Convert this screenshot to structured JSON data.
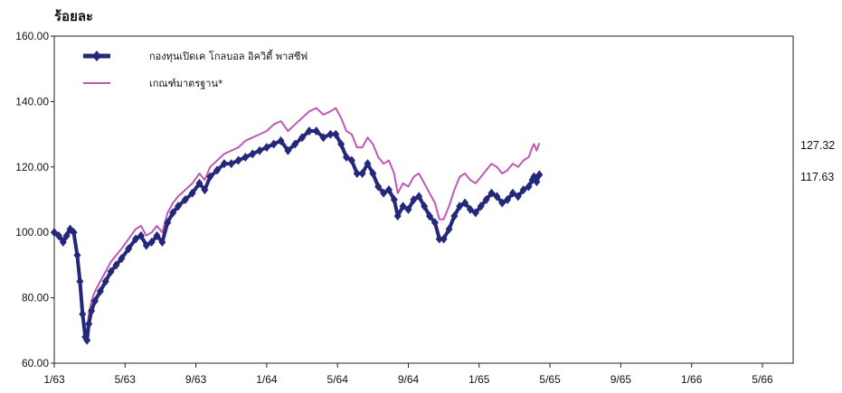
{
  "chart_data": {
    "type": "line",
    "ylabel": "ร้อยละ",
    "ylim": [
      60,
      160
    ],
    "yticks": [
      "160.00",
      "140.00",
      "120.00",
      "100.00",
      "80.00",
      "60.00"
    ],
    "xticks": [
      "1/63",
      "5/63",
      "9/63",
      "1/64",
      "5/64",
      "9/64",
      "1/65",
      "5/65",
      "9/65",
      "1/66",
      "5/66"
    ],
    "grid": false,
    "legend": "top-left",
    "series": [
      {
        "name": "กองทุนเปิดเค โกลบอล อิควิตี้ พาสซีฟ",
        "color": "#24287a",
        "marker": "diamond",
        "end_label": "117.63",
        "points": [
          [
            0,
            100
          ],
          [
            0.25,
            99
          ],
          [
            0.5,
            97
          ],
          [
            0.7,
            99
          ],
          [
            0.9,
            101
          ],
          [
            1.1,
            100
          ],
          [
            1.3,
            93
          ],
          [
            1.45,
            85
          ],
          [
            1.6,
            75
          ],
          [
            1.75,
            68
          ],
          [
            1.85,
            67
          ],
          [
            1.95,
            72
          ],
          [
            2.1,
            76
          ],
          [
            2.3,
            79
          ],
          [
            2.6,
            82
          ],
          [
            2.9,
            85
          ],
          [
            3.2,
            88
          ],
          [
            3.5,
            90
          ],
          [
            3.8,
            92
          ],
          [
            4.2,
            95
          ],
          [
            4.6,
            98
          ],
          [
            4.9,
            99
          ],
          [
            5.2,
            96
          ],
          [
            5.5,
            97
          ],
          [
            5.8,
            99
          ],
          [
            6.1,
            97
          ],
          [
            6.4,
            103
          ],
          [
            6.7,
            106
          ],
          [
            7.0,
            108
          ],
          [
            7.4,
            110
          ],
          [
            7.8,
            112
          ],
          [
            8.2,
            115
          ],
          [
            8.5,
            113
          ],
          [
            8.8,
            117
          ],
          [
            9.2,
            119
          ],
          [
            9.6,
            121
          ],
          [
            10.0,
            121
          ],
          [
            10.4,
            122
          ],
          [
            10.8,
            123
          ],
          [
            11.2,
            124
          ],
          [
            11.6,
            125
          ],
          [
            12.0,
            126
          ],
          [
            12.4,
            127
          ],
          [
            12.8,
            128
          ],
          [
            13.2,
            125
          ],
          [
            13.6,
            127
          ],
          [
            14.0,
            129
          ],
          [
            14.4,
            131
          ],
          [
            14.8,
            131
          ],
          [
            15.2,
            129
          ],
          [
            15.6,
            130
          ],
          [
            15.9,
            130
          ],
          [
            16.2,
            127
          ],
          [
            16.5,
            123
          ],
          [
            16.8,
            122
          ],
          [
            17.1,
            118
          ],
          [
            17.4,
            118
          ],
          [
            17.7,
            121
          ],
          [
            18.0,
            118
          ],
          [
            18.3,
            114
          ],
          [
            18.6,
            112
          ],
          [
            18.9,
            113
          ],
          [
            19.2,
            110
          ],
          [
            19.4,
            105
          ],
          [
            19.7,
            108
          ],
          [
            20.0,
            107
          ],
          [
            20.3,
            110
          ],
          [
            20.6,
            111
          ],
          [
            20.9,
            108
          ],
          [
            21.2,
            105
          ],
          [
            21.5,
            103
          ],
          [
            21.75,
            98
          ],
          [
            22.0,
            98
          ],
          [
            22.3,
            101
          ],
          [
            22.6,
            105
          ],
          [
            22.9,
            108
          ],
          [
            23.2,
            109
          ],
          [
            23.5,
            107
          ],
          [
            23.8,
            106
          ],
          [
            24.1,
            108
          ],
          [
            24.4,
            110
          ],
          [
            24.7,
            112
          ],
          [
            25.0,
            111
          ],
          [
            25.3,
            109
          ],
          [
            25.6,
            110
          ],
          [
            25.9,
            112
          ],
          [
            26.2,
            111
          ],
          [
            26.5,
            113
          ],
          [
            26.8,
            114
          ],
          [
            27.0,
            116
          ],
          [
            27.1,
            117
          ],
          [
            27.25,
            115.5
          ],
          [
            27.4,
            117.63
          ]
        ]
      },
      {
        "name": "เกณฑ์มาตรฐาน*",
        "color": "#c058b4",
        "marker": "none",
        "end_label": "127.32",
        "points": [
          [
            0,
            100
          ],
          [
            0.25,
            99.5
          ],
          [
            0.5,
            98
          ],
          [
            0.7,
            100
          ],
          [
            0.9,
            101.5
          ],
          [
            1.1,
            100.5
          ],
          [
            1.3,
            94
          ],
          [
            1.45,
            86
          ],
          [
            1.6,
            77
          ],
          [
            1.75,
            70
          ],
          [
            1.85,
            70
          ],
          [
            1.95,
            75
          ],
          [
            2.1,
            79
          ],
          [
            2.3,
            82
          ],
          [
            2.6,
            85
          ],
          [
            2.9,
            88
          ],
          [
            3.2,
            91
          ],
          [
            3.5,
            93
          ],
          [
            3.8,
            95
          ],
          [
            4.2,
            98
          ],
          [
            4.6,
            101
          ],
          [
            4.9,
            102
          ],
          [
            5.2,
            99
          ],
          [
            5.5,
            100
          ],
          [
            5.8,
            102
          ],
          [
            6.1,
            100
          ],
          [
            6.4,
            106
          ],
          [
            6.7,
            109
          ],
          [
            7.0,
            111
          ],
          [
            7.4,
            113
          ],
          [
            7.8,
            115
          ],
          [
            8.2,
            118
          ],
          [
            8.5,
            116
          ],
          [
            8.8,
            120
          ],
          [
            9.2,
            122
          ],
          [
            9.6,
            124
          ],
          [
            10.0,
            125
          ],
          [
            10.4,
            126
          ],
          [
            10.8,
            128
          ],
          [
            11.2,
            129
          ],
          [
            11.6,
            130
          ],
          [
            12.0,
            131
          ],
          [
            12.4,
            133
          ],
          [
            12.8,
            134
          ],
          [
            13.2,
            131
          ],
          [
            13.6,
            133
          ],
          [
            14.0,
            135
          ],
          [
            14.4,
            137
          ],
          [
            14.8,
            138
          ],
          [
            15.2,
            136
          ],
          [
            15.6,
            137
          ],
          [
            15.9,
            138
          ],
          [
            16.2,
            135
          ],
          [
            16.5,
            131
          ],
          [
            16.8,
            130
          ],
          [
            17.1,
            126
          ],
          [
            17.4,
            126
          ],
          [
            17.7,
            129
          ],
          [
            18.0,
            127
          ],
          [
            18.3,
            123
          ],
          [
            18.6,
            121
          ],
          [
            18.9,
            122
          ],
          [
            19.2,
            118
          ],
          [
            19.4,
            112
          ],
          [
            19.7,
            115
          ],
          [
            20.0,
            114
          ],
          [
            20.3,
            117
          ],
          [
            20.6,
            118
          ],
          [
            20.9,
            115
          ],
          [
            21.2,
            112
          ],
          [
            21.5,
            109
          ],
          [
            21.75,
            104
          ],
          [
            22.0,
            104
          ],
          [
            22.3,
            108
          ],
          [
            22.6,
            113
          ],
          [
            22.9,
            117
          ],
          [
            23.2,
            118
          ],
          [
            23.5,
            116
          ],
          [
            23.8,
            115
          ],
          [
            24.1,
            117
          ],
          [
            24.4,
            119
          ],
          [
            24.7,
            121
          ],
          [
            25.0,
            120
          ],
          [
            25.3,
            118
          ],
          [
            25.6,
            119
          ],
          [
            25.9,
            121
          ],
          [
            26.2,
            120
          ],
          [
            26.5,
            122
          ],
          [
            26.8,
            123
          ],
          [
            27.0,
            126
          ],
          [
            27.1,
            127
          ],
          [
            27.25,
            125
          ],
          [
            27.4,
            127.32
          ]
        ]
      }
    ]
  }
}
